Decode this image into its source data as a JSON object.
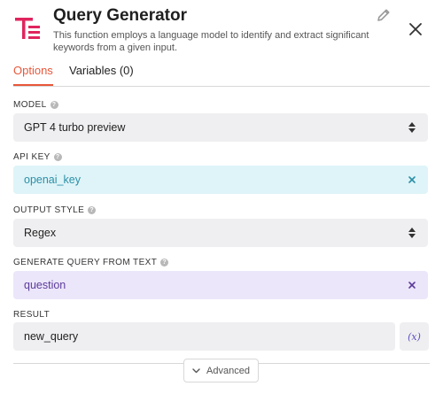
{
  "header": {
    "title": "Query Generator",
    "description": "This function employs a language model to identify and extract significant keywords from a given input.",
    "logo_color": "#e0245e"
  },
  "tabs": [
    {
      "label": "Options",
      "active": true
    },
    {
      "label": "Variables (0)",
      "active": false
    }
  ],
  "accent_color": "#e8573a",
  "fields": {
    "model": {
      "label": "MODEL",
      "value": "GPT 4 turbo preview",
      "type": "select"
    },
    "api_key": {
      "label": "API KEY",
      "value": "openai_key",
      "type": "variable-chip",
      "color": "#def4f8"
    },
    "output_style": {
      "label": "OUTPUT STYLE",
      "value": "Regex",
      "type": "select"
    },
    "generate_query_from_text": {
      "label": "GENERATE QUERY FROM TEXT",
      "value": "question",
      "type": "variable-chip",
      "color": "#ece6fa"
    },
    "result": {
      "label": "RESULT",
      "value": "new_query",
      "variable_button": "(x)"
    }
  },
  "advanced": {
    "label": "Advanced"
  },
  "icons": {
    "edit": "pencil-icon",
    "close": "close-icon",
    "help": "help-icon",
    "select": "select-arrows-icon",
    "clear": "clear-x-icon",
    "chevron": "chevron-down-icon"
  }
}
